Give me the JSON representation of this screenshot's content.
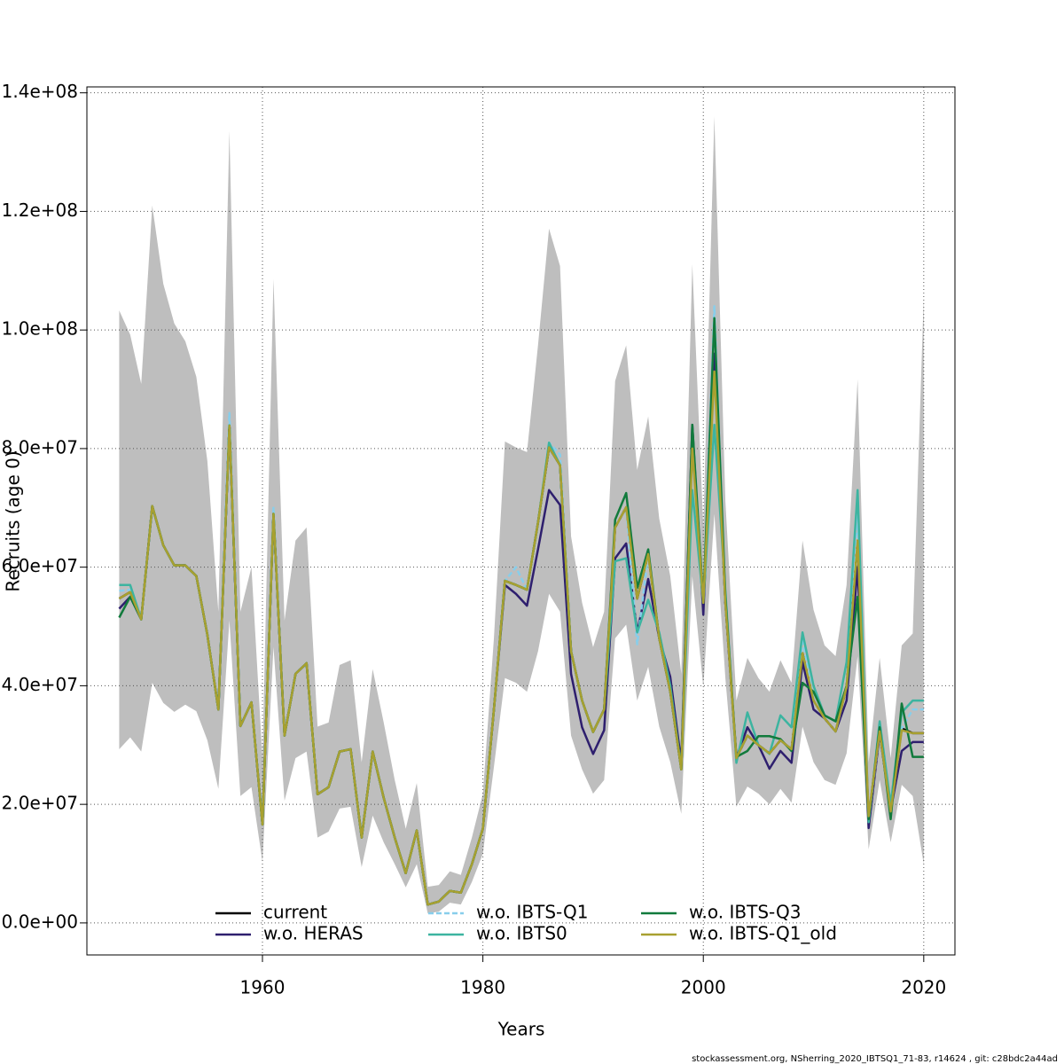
{
  "chart_data": {
    "type": "line",
    "ylabel": "Recruits (age 0)",
    "xlabel": "Years",
    "footer": "stockassessment.org, NSherring_2020_IBTSQ1_71-83, r14624 , git: c28bdc2a44ad",
    "x": [
      1947,
      1948,
      1949,
      1950,
      1951,
      1952,
      1953,
      1954,
      1955,
      1956,
      1957,
      1958,
      1959,
      1960,
      1961,
      1962,
      1963,
      1964,
      1965,
      1966,
      1967,
      1968,
      1969,
      1970,
      1971,
      1972,
      1973,
      1974,
      1975,
      1976,
      1977,
      1978,
      1979,
      1980,
      1981,
      1982,
      1983,
      1984,
      1985,
      1986,
      1987,
      1988,
      1989,
      1990,
      1991,
      1992,
      1993,
      1994,
      1995,
      1996,
      1997,
      1998,
      1999,
      2000,
      2001,
      2002,
      2003,
      2004,
      2005,
      2006,
      2007,
      2008,
      2009,
      2010,
      2011,
      2012,
      2013,
      2014,
      2015,
      2016,
      2017,
      2018,
      2019,
      2020
    ],
    "xlim": [
      1944.07,
      2022.83
    ],
    "xticks": [
      1960,
      1980,
      2000,
      2020
    ],
    "ylim": [
      -5400000.0,
      141000000.0
    ],
    "yticks": [
      {
        "value": 0,
        "label": "0.0e+00"
      },
      {
        "value": 20000000.0,
        "label": "2.0e+07"
      },
      {
        "value": 40000000.0,
        "label": "4.0e+07"
      },
      {
        "value": 60000000.0,
        "label": "6.0e+07"
      },
      {
        "value": 80000000.0,
        "label": "8.0e+07"
      },
      {
        "value": 100000000.0,
        "label": "1.0e+08"
      },
      {
        "value": 120000000.0,
        "label": "1.2e+08"
      },
      {
        "value": 140000000.0,
        "label": "1.4e+08"
      }
    ],
    "grid": true,
    "legend": "bottom",
    "band": {
      "color": "#bebebe",
      "upper": [
        103300000.0,
        99200000.0,
        90900000.0,
        121000000.0,
        107800000.0,
        101100000.0,
        98100000.0,
        92100000.0,
        77900000.0,
        52500000.0,
        133600000.0,
        52500000.0,
        60000000.0,
        27800000.0,
        108600000.0,
        51000000.0,
        64500000.0,
        66700000.0,
        33100000.0,
        33800000.0,
        43500000.0,
        44300000.0,
        27100000.0,
        42800000.0,
        33800000.0,
        24100000.0,
        15900000.0,
        23600000.0,
        6100000.0,
        6400000.0,
        8700000.0,
        8100000.0,
        14400000.0,
        21800000.0,
        48000000.0,
        81200000.0,
        80200000.0,
        79400000.0,
        97400000.0,
        117100000.0,
        110800000.0,
        65200000.0,
        54000000.0,
        46500000.0,
        52500000.0,
        91400000.0,
        97400000.0,
        76400000.0,
        85400000.0,
        68200000.0,
        58500000.0,
        42000000.0,
        111100000.0,
        66700000.0,
        136000000.0,
        71200000.0,
        37500000.0,
        44700000.0,
        41300000.0,
        39000000.0,
        44300000.0,
        40500000.0,
        64500000.0,
        52800000.0,
        46800000.0,
        45000000.0,
        57000000.0,
        91700000.0,
        27100000.0,
        44700000.0,
        27800000.0,
        46800000.0,
        48800000.0,
        105600000.0
      ],
      "lower": [
        29300000.0,
        31300000.0,
        28900000.0,
        40500000.0,
        37100000.0,
        35600000.0,
        36800000.0,
        35700000.0,
        30800000.0,
        22600000.0,
        51000000.0,
        21400000.0,
        22900000.0,
        10300000.0,
        46500000.0,
        20600000.0,
        27800000.0,
        28900000.0,
        14400000.0,
        15400000.0,
        19300000.0,
        19600000.0,
        9400000.0,
        18100000.0,
        13600000.0,
        9900000.0,
        6000000.0,
        9900000.0,
        1600000.0,
        1900000.0,
        3400000.0,
        3100000.0,
        6900000.0,
        11700000.0,
        26300000.0,
        41300000.0,
        40500000.0,
        39000000.0,
        45800000.0,
        55500000.0,
        52500000.0,
        31600000.0,
        25900000.0,
        21800000.0,
        24100000.0,
        48000000.0,
        50300000.0,
        37500000.0,
        43200000.0,
        33100000.0,
        27100000.0,
        18400000.0,
        58500000.0,
        39800000.0,
        69000000.0,
        41300000.0,
        19600000.0,
        23000000.0,
        21800000.0,
        20000000.0,
        22600000.0,
        20300000.0,
        33100000.0,
        27100000.0,
        24100000.0,
        23300000.0,
        28600000.0,
        45000000.0,
        12400000.0,
        24100000.0,
        13600000.0,
        23300000.0,
        21400000.0,
        9900000.0
      ]
    },
    "series": [
      {
        "name": "current",
        "color": "#000000",
        "dash": false,
        "values": [
          54700000.0,
          55800000.0,
          51200000.0,
          70300000.0,
          63700000.0,
          60300000.0,
          60300000.0,
          58500000.0,
          48600000.0,
          36000000.0,
          83900000.0,
          33200000.0,
          37200000.0,
          16600000.0,
          69000000.0,
          31600000.0,
          42000000.0,
          43800000.0,
          21700000.0,
          22900000.0,
          28900000.0,
          29300000.0,
          14400000.0,
          28900000.0,
          21100000.0,
          14400000.0,
          8400000.0,
          15600000.0,
          3100000.0,
          3600000.0,
          5400000.0,
          5100000.0,
          9900000.0,
          15900000.0,
          36000000.0,
          57700000.0,
          57000000.0,
          56200000.0,
          67500000.0,
          80200000.0,
          77200000.0,
          45800000.0,
          37500000.0,
          32200000.0,
          36000000.0,
          66700000.0,
          70100000.0,
          54700000.0,
          62200000.0,
          48000000.0,
          39000000.0,
          25900000.0,
          82400000.0,
          54000000.0,
          95900000.0,
          54000000.0,
          27800000.0,
          31600000.0,
          30000000.0,
          28600000.0,
          30800000.0,
          29300000.0,
          45500000.0,
          37500000.0,
          34500000.0,
          32300000.0,
          39800000.0,
          64500000.0,
          17300000.0,
          32300000.0,
          18800000.0,
          32800000.0,
          32000000.0,
          32000000.0
        ]
      },
      {
        "name": "w.o. HERAS",
        "color": "#2e1f6e",
        "dash": false,
        "values": [
          53000000.0,
          55000000.0,
          51200000.0,
          70300000.0,
          63700000.0,
          60300000.0,
          60300000.0,
          58500000.0,
          48600000.0,
          36000000.0,
          83900000.0,
          33200000.0,
          37200000.0,
          16600000.0,
          69000000.0,
          31600000.0,
          42000000.0,
          43800000.0,
          21700000.0,
          22900000.0,
          28900000.0,
          29300000.0,
          14400000.0,
          28900000.0,
          21100000.0,
          14400000.0,
          8400000.0,
          15600000.0,
          3100000.0,
          3600000.0,
          5400000.0,
          5100000.0,
          9900000.0,
          15900000.0,
          36000000.0,
          57000000.0,
          55500000.0,
          53500000.0,
          63000000.0,
          73000000.0,
          70500000.0,
          42000000.0,
          33000000.0,
          28500000.0,
          32500000.0,
          61500000.0,
          64000000.0,
          49000000.0,
          58000000.0,
          48000000.0,
          41500000.0,
          27000000.0,
          84000000.0,
          52000000.0,
          96000000.0,
          54000000.0,
          27800000.0,
          33000000.0,
          30000000.0,
          26000000.0,
          29000000.0,
          27000000.0,
          44000000.0,
          36000000.0,
          34500000.0,
          32300000.0,
          37500000.0,
          60000000.0,
          16000000.0,
          32000000.0,
          19000000.0,
          29000000.0,
          30500000.0,
          30500000.0
        ]
      },
      {
        "name": "w.o. IBTS-Q1",
        "color": "#87ceeb",
        "dash": true,
        "values": [
          56000000.0,
          56200000.0,
          51200000.0,
          70300000.0,
          63700000.0,
          60300000.0,
          60300000.0,
          58500000.0,
          48600000.0,
          36000000.0,
          86000000.0,
          33200000.0,
          37200000.0,
          16600000.0,
          70000000.0,
          31600000.0,
          42000000.0,
          43800000.0,
          21700000.0,
          22900000.0,
          28900000.0,
          29300000.0,
          14400000.0,
          28900000.0,
          21100000.0,
          14400000.0,
          8400000.0,
          15600000.0,
          3100000.0,
          3600000.0,
          5400000.0,
          5100000.0,
          9900000.0,
          15900000.0,
          36000000.0,
          57700000.0,
          60000000.0,
          56200000.0,
          67500000.0,
          81000000.0,
          79000000.0,
          45800000.0,
          37500000.0,
          32200000.0,
          36000000.0,
          66700000.0,
          70100000.0,
          47000000.0,
          62200000.0,
          48000000.0,
          39000000.0,
          25900000.0,
          82400000.0,
          54000000.0,
          104000000.0,
          54000000.0,
          27800000.0,
          31600000.0,
          30000000.0,
          28600000.0,
          30800000.0,
          29300000.0,
          48000000.0,
          37500000.0,
          34500000.0,
          32300000.0,
          39800000.0,
          69000000.0,
          17300000.0,
          32300000.0,
          18800000.0,
          32800000.0,
          36000000.0,
          36000000.0
        ]
      },
      {
        "name": "w.o. IBTS0",
        "color": "#3cb4a0",
        "dash": false,
        "values": [
          57000000.0,
          57000000.0,
          51200000.0,
          70300000.0,
          63700000.0,
          60300000.0,
          60300000.0,
          58500000.0,
          48600000.0,
          36000000.0,
          83900000.0,
          33200000.0,
          37200000.0,
          16600000.0,
          69000000.0,
          31600000.0,
          42000000.0,
          43800000.0,
          21700000.0,
          22900000.0,
          28900000.0,
          29300000.0,
          14400000.0,
          28900000.0,
          21100000.0,
          14400000.0,
          8400000.0,
          15600000.0,
          3100000.0,
          3600000.0,
          5400000.0,
          5100000.0,
          9900000.0,
          15900000.0,
          36000000.0,
          57700000.0,
          57000000.0,
          56200000.0,
          67500000.0,
          81000000.0,
          77200000.0,
          45800000.0,
          37500000.0,
          32200000.0,
          36000000.0,
          61000000.0,
          61500000.0,
          49000000.0,
          54500000.0,
          49000000.0,
          40000000.0,
          26000000.0,
          73000000.0,
          54000000.0,
          84000000.0,
          56000000.0,
          27000000.0,
          35500000.0,
          30000000.0,
          28500000.0,
          35000000.0,
          33000000.0,
          49000000.0,
          40000000.0,
          35000000.0,
          34000000.0,
          44000000.0,
          73000000.0,
          17000000.0,
          34000000.0,
          20000000.0,
          35500000.0,
          37500000.0,
          37500000.0
        ]
      },
      {
        "name": "w.o. IBTS-Q3",
        "color": "#117a3c",
        "dash": false,
        "values": [
          51500000.0,
          55000000.0,
          51200000.0,
          70300000.0,
          63700000.0,
          60300000.0,
          60300000.0,
          58500000.0,
          48600000.0,
          36000000.0,
          83900000.0,
          33200000.0,
          37200000.0,
          16600000.0,
          69000000.0,
          31600000.0,
          42000000.0,
          43800000.0,
          21700000.0,
          22900000.0,
          28900000.0,
          29300000.0,
          14400000.0,
          28900000.0,
          21100000.0,
          14400000.0,
          8400000.0,
          15600000.0,
          3100000.0,
          3600000.0,
          5400000.0,
          5100000.0,
          9900000.0,
          15900000.0,
          36000000.0,
          57700000.0,
          57000000.0,
          56200000.0,
          67500000.0,
          80200000.0,
          77200000.0,
          45800000.0,
          37500000.0,
          32200000.0,
          36000000.0,
          68000000.0,
          72500000.0,
          56500000.0,
          63000000.0,
          48000000.0,
          39000000.0,
          25900000.0,
          84000000.0,
          54000000.0,
          102000000.0,
          55000000.0,
          28000000.0,
          29000000.0,
          31500000.0,
          31500000.0,
          31000000.0,
          29000000.0,
          40500000.0,
          39000000.0,
          35000000.0,
          34000000.0,
          40000000.0,
          55000000.0,
          17500000.0,
          33000000.0,
          17500000.0,
          37000000.0,
          28000000.0,
          28000000.0
        ]
      },
      {
        "name": "w.o. IBTS-Q1_old",
        "color": "#a8a030",
        "dash": false,
        "values": [
          54700000.0,
          55800000.0,
          51200000.0,
          70300000.0,
          63700000.0,
          60300000.0,
          60300000.0,
          58500000.0,
          48600000.0,
          36000000.0,
          83900000.0,
          33200000.0,
          37200000.0,
          16600000.0,
          69000000.0,
          31600000.0,
          42000000.0,
          43800000.0,
          21700000.0,
          22900000.0,
          28900000.0,
          29300000.0,
          14400000.0,
          28900000.0,
          21100000.0,
          14400000.0,
          8400000.0,
          15600000.0,
          3100000.0,
          3600000.0,
          5400000.0,
          5100000.0,
          9900000.0,
          15900000.0,
          36000000.0,
          57700000.0,
          57000000.0,
          56200000.0,
          67500000.0,
          80200000.0,
          77200000.0,
          45800000.0,
          37500000.0,
          32200000.0,
          36000000.0,
          66700000.0,
          70100000.0,
          54700000.0,
          62200000.0,
          48000000.0,
          39000000.0,
          25900000.0,
          80000000.0,
          54000000.0,
          93000000.0,
          54000000.0,
          27800000.0,
          31600000.0,
          30000000.0,
          28600000.0,
          30800000.0,
          29300000.0,
          45500000.0,
          37500000.0,
          34500000.0,
          32300000.0,
          39800000.0,
          64500000.0,
          18000000.0,
          32300000.0,
          18800000.0,
          32500000.0,
          32000000.0,
          32000000.0
        ]
      }
    ]
  }
}
